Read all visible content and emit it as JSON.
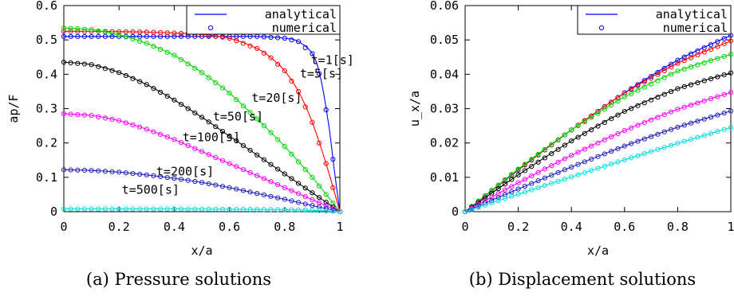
{
  "chart_data": [
    {
      "type": "line",
      "xlabel": "x/a",
      "ylabel": "ap/F",
      "xlim": [
        0,
        1
      ],
      "ylim": [
        0,
        0.6
      ],
      "x_ticks": [
        "0",
        "0.2",
        "0.4",
        "0.6",
        "0.8",
        "1"
      ],
      "y_ticks": [
        "0",
        "0.1",
        "0.2",
        "0.3",
        "0.4",
        "0.5",
        "0.6"
      ],
      "caption": "(a) Pressure solutions",
      "legend": {
        "placement": "top-right",
        "line_label": "analytical",
        "marker_label": "numerical"
      },
      "series": [
        {
          "name": "t=1[s]",
          "color": "#0000ff",
          "x": [
            0,
            0.1,
            0.2,
            0.3,
            0.4,
            0.5,
            0.6,
            0.7,
            0.8,
            0.85,
            0.9,
            0.93,
            0.96,
            0.98,
            1.0
          ],
          "y": [
            0.51,
            0.51,
            0.51,
            0.51,
            0.51,
            0.51,
            0.51,
            0.51,
            0.505,
            0.495,
            0.46,
            0.39,
            0.25,
            0.12,
            0.0
          ]
        },
        {
          "name": "t=5[s]",
          "color": "#ff0000",
          "x": [
            0,
            0.1,
            0.2,
            0.3,
            0.4,
            0.5,
            0.6,
            0.7,
            0.75,
            0.8,
            0.85,
            0.9,
            0.95,
            1.0
          ],
          "y": [
            0.525,
            0.525,
            0.524,
            0.523,
            0.52,
            0.516,
            0.505,
            0.475,
            0.448,
            0.41,
            0.35,
            0.26,
            0.14,
            0.0
          ]
        },
        {
          "name": "t=20[s]",
          "color": "#00d800",
          "x": [
            0,
            0.1,
            0.2,
            0.3,
            0.4,
            0.5,
            0.6,
            0.7,
            0.8,
            0.9,
            1.0
          ],
          "y": [
            0.535,
            0.53,
            0.515,
            0.49,
            0.455,
            0.405,
            0.345,
            0.27,
            0.19,
            0.1,
            0.0
          ]
        },
        {
          "name": "t=50[s]",
          "color": "#000000",
          "x": [
            0,
            0.1,
            0.2,
            0.3,
            0.4,
            0.5,
            0.6,
            0.7,
            0.8,
            0.9,
            1.0
          ],
          "y": [
            0.435,
            0.428,
            0.405,
            0.37,
            0.325,
            0.275,
            0.22,
            0.165,
            0.11,
            0.055,
            0.0
          ]
        },
        {
          "name": "t=100[s]",
          "color": "#ff00ff",
          "x": [
            0,
            0.1,
            0.2,
            0.3,
            0.4,
            0.5,
            0.6,
            0.7,
            0.8,
            0.9,
            1.0
          ],
          "y": [
            0.285,
            0.28,
            0.265,
            0.24,
            0.21,
            0.175,
            0.14,
            0.105,
            0.07,
            0.035,
            0.0
          ]
        },
        {
          "name": "t=200[s]",
          "color": "#2020c0",
          "x": [
            0,
            0.1,
            0.2,
            0.3,
            0.4,
            0.5,
            0.6,
            0.7,
            0.8,
            0.9,
            1.0
          ],
          "y": [
            0.122,
            0.12,
            0.115,
            0.107,
            0.097,
            0.085,
            0.07,
            0.053,
            0.036,
            0.018,
            0.0
          ]
        },
        {
          "name": "t=500[s]",
          "color": "#00e0e0",
          "x": [
            0,
            0.2,
            0.4,
            0.6,
            0.8,
            0.9,
            1.0
          ],
          "y": [
            0.008,
            0.008,
            0.008,
            0.007,
            0.006,
            0.004,
            0.0
          ]
        }
      ],
      "labels": [
        {
          "text": "t=1[s]",
          "x": 0.895,
          "y": 0.43
        },
        {
          "text": "t=5[s]",
          "x": 0.855,
          "y": 0.39
        },
        {
          "text": "t=20[s]",
          "x": 0.68,
          "y": 0.32
        },
        {
          "text": "t=50[s]",
          "x": 0.54,
          "y": 0.265
        },
        {
          "text": "t=100[s]",
          "x": 0.43,
          "y": 0.205
        },
        {
          "text": "t=200[s]",
          "x": 0.335,
          "y": 0.105
        },
        {
          "text": "t=500[s]",
          "x": 0.21,
          "y": 0.052
        }
      ]
    },
    {
      "type": "line",
      "xlabel": "x/a",
      "ylabel": "u_x/a",
      "xlim": [
        0,
        1
      ],
      "ylim": [
        0,
        0.06
      ],
      "x_ticks": [
        "0",
        "0.2",
        "0.4",
        "0.6",
        "0.8",
        "1"
      ],
      "y_ticks": [
        "0",
        "0.01",
        "0.02",
        "0.03",
        "0.04",
        "0.05",
        "0.06"
      ],
      "caption": "(b) Displacement solutions",
      "legend": {
        "placement": "top-right",
        "line_label": "analytical",
        "marker_label": "numerical"
      },
      "series": [
        {
          "color": "#0000ff",
          "x": [
            0,
            0.2,
            0.4,
            0.6,
            0.8,
            1.0
          ],
          "y": [
            0,
            0.0121,
            0.0238,
            0.0346,
            0.0441,
            0.0513
          ]
        },
        {
          "color": "#ff0000",
          "x": [
            0,
            0.2,
            0.4,
            0.6,
            0.8,
            1.0
          ],
          "y": [
            0,
            0.0122,
            0.0238,
            0.0345,
            0.0432,
            0.0497
          ]
        },
        {
          "color": "#00d800",
          "x": [
            0,
            0.2,
            0.4,
            0.6,
            0.8,
            1.0
          ],
          "y": [
            0,
            0.0124,
            0.0238,
            0.0334,
            0.0409,
            0.0458
          ]
        },
        {
          "color": "#000000",
          "x": [
            0,
            0.2,
            0.4,
            0.6,
            0.8,
            1.0
          ],
          "y": [
            0,
            0.0107,
            0.0206,
            0.0292,
            0.0358,
            0.0404
          ]
        },
        {
          "color": "#ff00ff",
          "x": [
            0,
            0.2,
            0.4,
            0.6,
            0.8,
            1.0
          ],
          "y": [
            0,
            0.0084,
            0.0164,
            0.0236,
            0.0298,
            0.0347
          ]
        },
        {
          "color": "#2020c0",
          "x": [
            0,
            0.2,
            0.4,
            0.6,
            0.8,
            1.0
          ],
          "y": [
            0,
            0.0066,
            0.013,
            0.0191,
            0.0246,
            0.0293
          ]
        },
        {
          "color": "#00e0e0",
          "x": [
            0,
            0.2,
            0.4,
            0.6,
            0.8,
            1.0
          ],
          "y": [
            0,
            0.0051,
            0.0101,
            0.0151,
            0.0199,
            0.0245
          ]
        }
      ]
    }
  ]
}
